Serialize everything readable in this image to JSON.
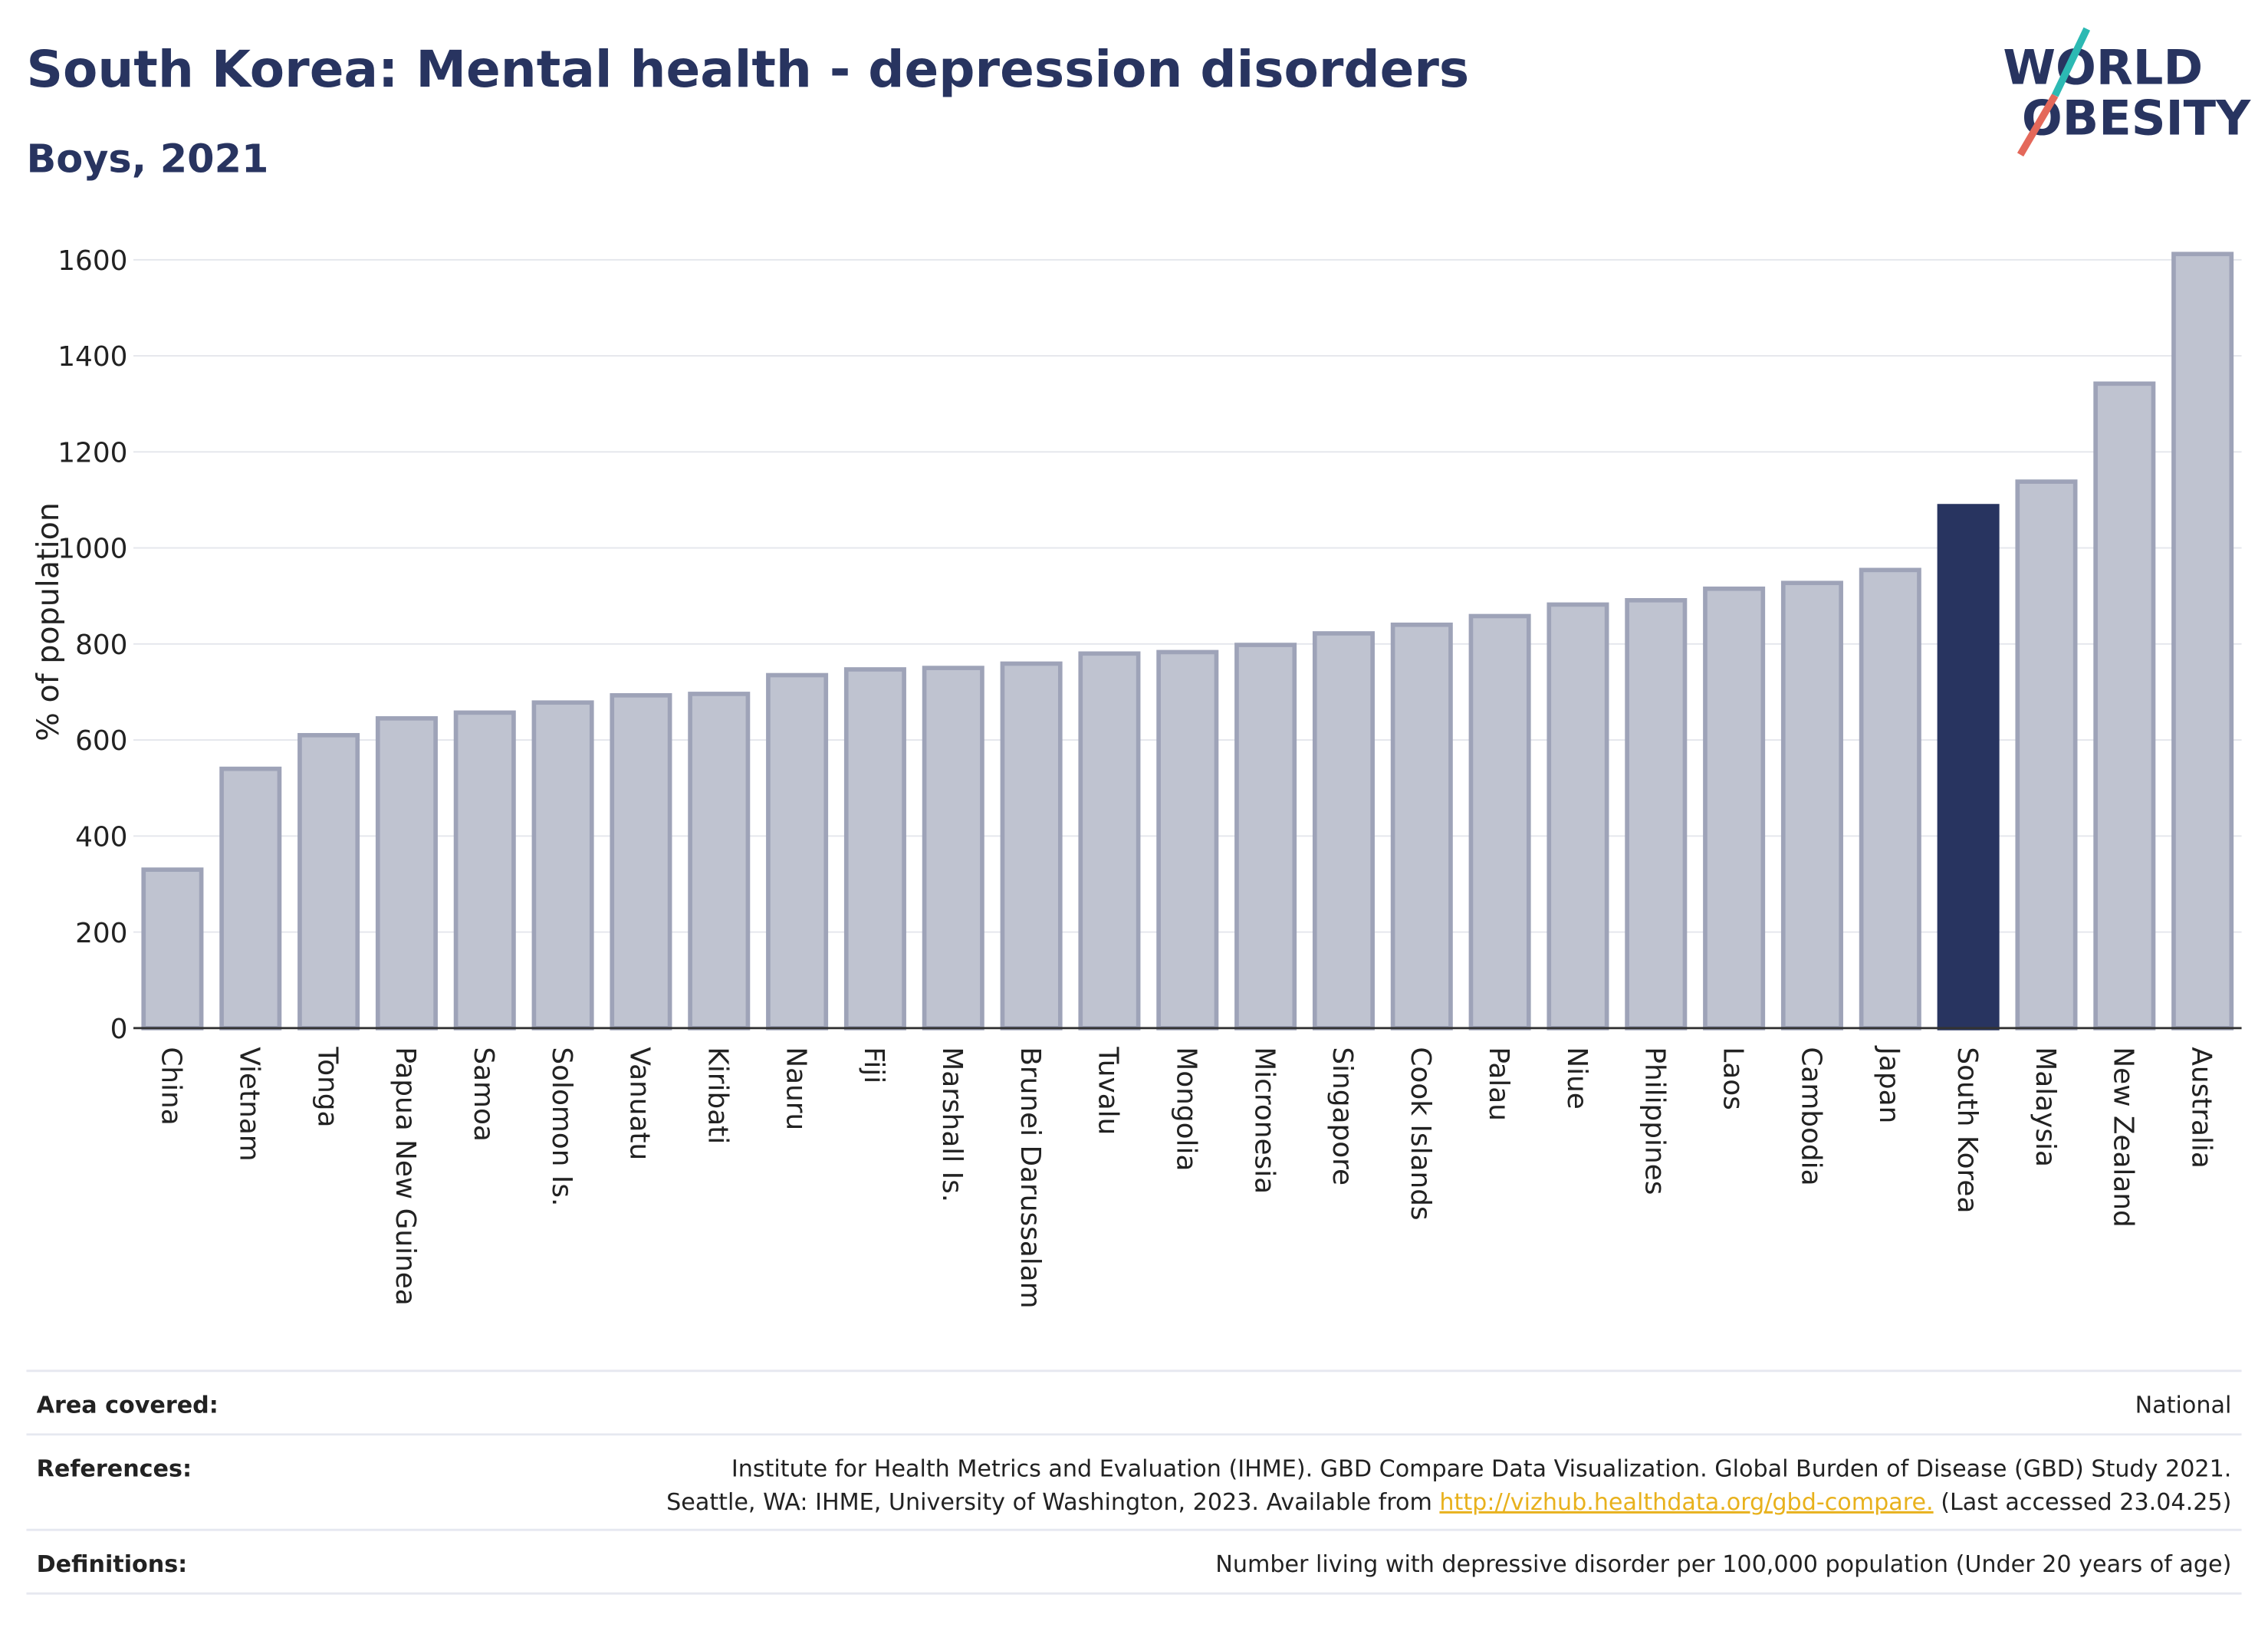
{
  "chart_data": {
    "type": "bar",
    "title": "South Korea: Mental health - depression disorders",
    "subtitle": "Boys, 2021",
    "y_label": "% of population",
    "categories": [
      "China",
      "Vietnam",
      "Tonga",
      "Papua New Guinea",
      "Samoa",
      "Solomon Is.",
      "Vanuatu",
      "Kiribati",
      "Nauru",
      "Fiji",
      "Marshall Is.",
      "Brunei Darussalam",
      "Tuvalu",
      "Mongolia",
      "Micronesia",
      "Singapore",
      "Cook Islands",
      "Palau",
      "Niue",
      "Philippines",
      "Laos",
      "Cambodia",
      "Japan",
      "South Korea",
      "Malaysia",
      "New Zealand",
      "Australia"
    ],
    "values": [
      330,
      540,
      610,
      645,
      657,
      678,
      693,
      696,
      735,
      747,
      750,
      759,
      780,
      783,
      798,
      822,
      840,
      858,
      882,
      891,
      915,
      927,
      954,
      1087,
      1138,
      1342,
      1612
    ],
    "colors": [
      "#bfc3d0",
      "#bfc3d0",
      "#bfc3d0",
      "#bfc3d0",
      "#bfc3d0",
      "#bfc3d0",
      "#bfc3d0",
      "#bfc3d0",
      "#bfc3d0",
      "#bfc3d0",
      "#bfc3d0",
      "#bfc3d0",
      "#bfc3d0",
      "#bfc3d0",
      "#bfc3d0",
      "#bfc3d0",
      "#bfc3d0",
      "#bfc3d0",
      "#bfc3d0",
      "#bfc3d0",
      "#bfc3d0",
      "#bfc3d0",
      "#bfc3d0",
      "#283460",
      "#bfc3d0",
      "#bfc3d0",
      "#bfc3d0"
    ],
    "ylim": [
      0,
      1620
    ],
    "yticks": [
      0,
      200,
      400,
      600,
      800,
      1000,
      1200,
      1400,
      1600
    ],
    "grid": true
  },
  "logo": [
    "WORLD",
    "OBESITY"
  ],
  "footer": {
    "rows": [
      {
        "label": "Area covered:",
        "lines": [
          [
            "National"
          ]
        ]
      },
      {
        "label": "References:",
        "lines": [
          [
            "Institute for Health Metrics and Evaluation (IHME). GBD Compare Data Visualization. Global Burden of Disease (GBD) Study 2021."
          ],
          [
            "Seattle, WA: IHME, University of Washington, 2023. Available from ",
            "http://vizhub.healthdata.org/gbd-compare.",
            " (Last accessed 23.04.25)"
          ]
        ]
      },
      {
        "label": "Definitions:",
        "lines": [
          [
            "Number living with depressive disorder per 100,000 population (Under 20 years of age)"
          ]
        ]
      }
    ]
  }
}
